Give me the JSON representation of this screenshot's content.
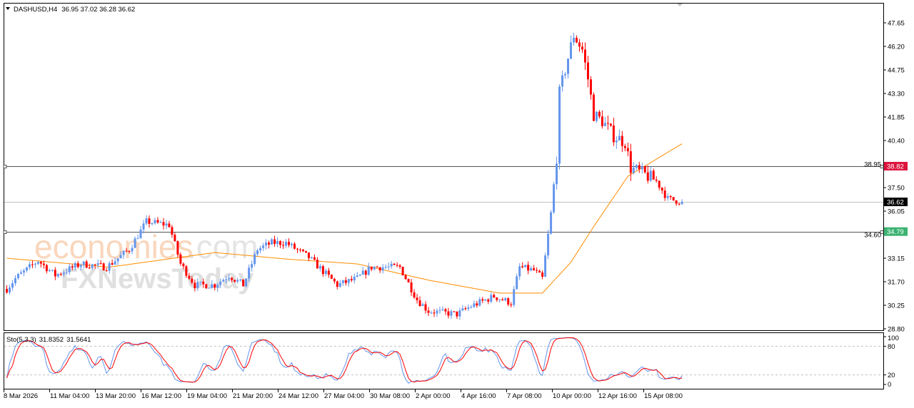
{
  "header": {
    "symbol": "DASHUSD,H4",
    "ohlc": "36.95 37.02 36.28 36.62"
  },
  "watermark": {
    "line1": "economies",
    "line1_suffix": ".com",
    "line2": "FXNewsToday"
  },
  "colors": {
    "bull": "#6495ED",
    "bear": "#FF0000",
    "ma": "#FF8C00",
    "stoch_main": "#6495ED",
    "stoch_signal": "#FF0000",
    "level_red": "#DC143C",
    "level_green": "#3CB371"
  },
  "chart_data": {
    "type": "candlestick",
    "title": "DASHUSD,H4",
    "ylim": [
      28.8,
      47.65
    ],
    "yticks": [
      "47.65",
      "46.20",
      "44.75",
      "43.30",
      "41.85",
      "40.40",
      "38.95",
      "37.50",
      "36.05",
      "34.60",
      "33.15",
      "31.70",
      "30.25",
      "28.80"
    ],
    "xticks": [
      "8 Mar 2026",
      "11 Mar 04:00",
      "13 Mar 20:00",
      "16 Mar 12:00",
      "19 Mar 04:00",
      "21 Mar 20:00",
      "24 Mar 12:00",
      "27 Mar 04:00",
      "30 Mar 08:00",
      "2 Apr 00:00",
      "4 Apr 16:00",
      "7 Apr 08:00",
      "10 Apr 00:00",
      "12 Apr 16:00",
      "15 Apr 08:00"
    ],
    "bar_count": 238,
    "close_anchors": [
      [
        0,
        31.26
      ],
      [
        3,
        31.9
      ],
      [
        11,
        33.0
      ],
      [
        17,
        32.1
      ],
      [
        26,
        32.8
      ],
      [
        35,
        32.6
      ],
      [
        43,
        33.7
      ],
      [
        49,
        35.4
      ],
      [
        57,
        35.2
      ],
      [
        61,
        32.8
      ],
      [
        66,
        31.5
      ],
      [
        73,
        31.5
      ],
      [
        78,
        32.1
      ],
      [
        83,
        31.5
      ],
      [
        88,
        33.7
      ],
      [
        93,
        34.1
      ],
      [
        98,
        34.1
      ],
      [
        106,
        33.2
      ],
      [
        116,
        31.5
      ],
      [
        123,
        31.9
      ],
      [
        128,
        32.6
      ],
      [
        138,
        32.6
      ],
      [
        144,
        30.6
      ],
      [
        148,
        29.9
      ],
      [
        158,
        29.7
      ],
      [
        163,
        30.2
      ],
      [
        171,
        30.8
      ],
      [
        177,
        30.4
      ],
      [
        180,
        32.6
      ],
      [
        185,
        32.4
      ],
      [
        188,
        31.9
      ],
      [
        191,
        35.9
      ],
      [
        193,
        39.4
      ],
      [
        194,
        43.3
      ],
      [
        197,
        45.5
      ],
      [
        199,
        46.9
      ],
      [
        202,
        46.0
      ],
      [
        204,
        44.2
      ],
      [
        206,
        42.0
      ],
      [
        209,
        41.6
      ],
      [
        213,
        40.7
      ],
      [
        217,
        40.3
      ],
      [
        219,
        38.7
      ],
      [
        224,
        38.3
      ],
      [
        228,
        37.9
      ],
      [
        232,
        36.8
      ],
      [
        237,
        36.62
      ]
    ],
    "ma_anchors": [
      [
        0,
        33.15
      ],
      [
        36,
        32.6
      ],
      [
        73,
        33.5
      ],
      [
        98,
        33.1
      ],
      [
        123,
        32.8
      ],
      [
        148,
        31.8
      ],
      [
        173,
        31.0
      ],
      [
        188,
        31.0
      ],
      [
        198,
        32.9
      ],
      [
        206,
        35.1
      ],
      [
        218,
        38.2
      ],
      [
        237,
        40.2
      ]
    ],
    "horizontal_levels": [
      {
        "price": 38.82,
        "label": "38.82",
        "color": "#DC143C"
      },
      {
        "price": 34.79,
        "label": "34.79",
        "color": "#3CB371"
      }
    ],
    "current_price": {
      "price": 36.62,
      "label": "36.62"
    },
    "indicator": {
      "name": "Sto(5,3,3)",
      "main_value": "31.8352",
      "signal_value": "31.5641",
      "ylim": [
        0,
        100
      ],
      "levels": [
        20,
        80
      ],
      "ticks": [
        "100",
        "80",
        "20",
        "0"
      ]
    }
  }
}
